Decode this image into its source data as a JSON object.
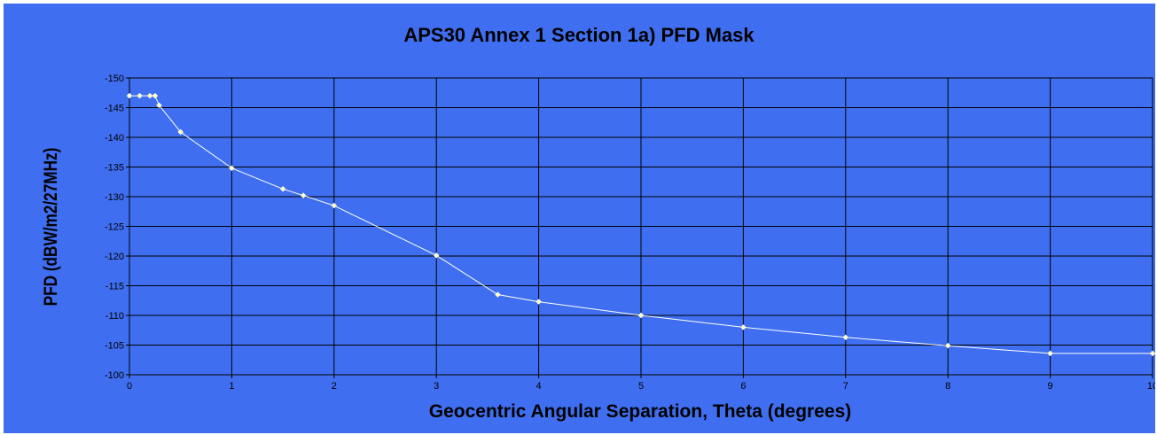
{
  "chart_data": {
    "type": "line",
    "title": "APS30 Annex 1 Section 1a) PFD Mask",
    "xlabel": "Geocentric Angular Separation, Theta (degrees)",
    "ylabel": "PFD (dBW/m2/27MHz)",
    "xlim": [
      0,
      10
    ],
    "ylim": [
      -150,
      -100
    ],
    "y_reversed": true,
    "x_ticks": [
      0,
      1,
      2,
      3,
      4,
      5,
      6,
      7,
      8,
      9,
      10
    ],
    "y_ticks": [
      -150,
      -145,
      -140,
      -135,
      -130,
      -125,
      -120,
      -115,
      -110,
      -105,
      -100
    ],
    "grid": true,
    "legend": "none",
    "colors": {
      "background": "#3f6ff0",
      "grid": "#000000",
      "line": "#ffffff",
      "marker": "#ffffcc"
    },
    "series": [
      {
        "x": [
          0,
          0.1,
          0.2,
          0.25,
          0.29,
          0.5,
          1,
          1.5,
          1.7,
          2,
          3,
          3.6,
          4,
          5,
          6,
          7,
          8,
          9,
          10
        ],
        "y": [
          -147,
          -147,
          -147,
          -147,
          -145.4,
          -140.9,
          -134.8,
          -131.3,
          -130.2,
          -128.5,
          -120.1,
          -113.5,
          -112.3,
          -110.0,
          -108.0,
          -106.3,
          -104.9,
          -103.6,
          -103.6
        ]
      }
    ]
  }
}
